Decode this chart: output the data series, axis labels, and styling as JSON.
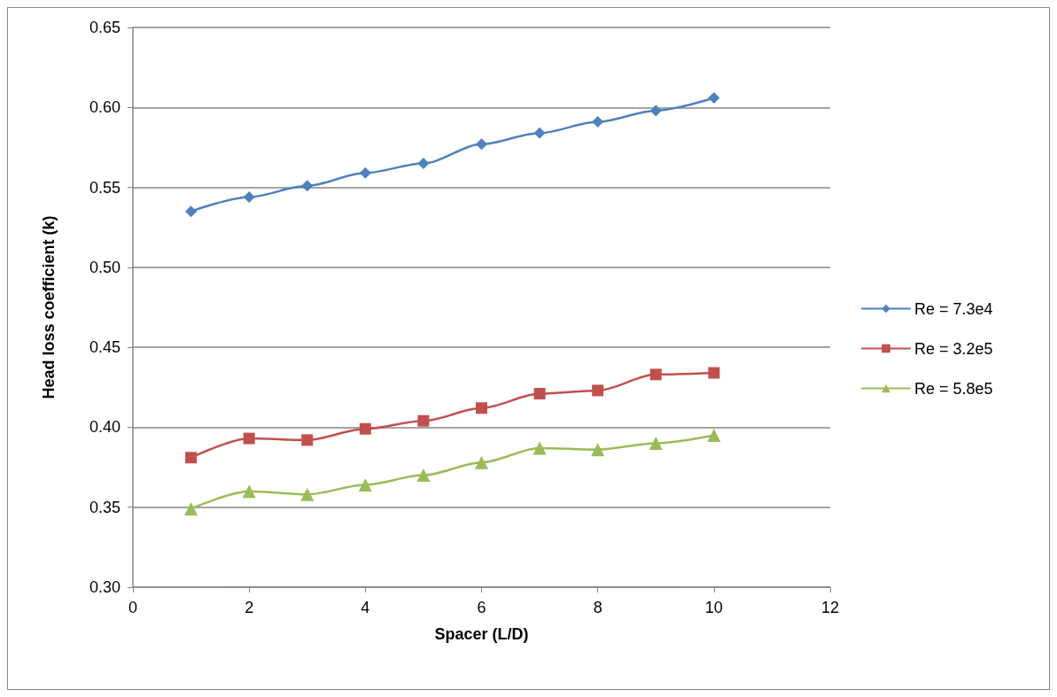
{
  "chart_data": {
    "type": "line",
    "xlabel": "Spacer (L/D)",
    "ylabel": "Head loss coefficient (k)",
    "x": [
      1,
      2,
      3,
      4,
      5,
      6,
      7,
      8,
      9,
      10
    ],
    "series": [
      {
        "name": "Re = 7.3e4",
        "color": "#4f81bd",
        "marker": "diamond",
        "values": [
          0.535,
          0.544,
          0.551,
          0.559,
          0.565,
          0.577,
          0.584,
          0.591,
          0.598,
          0.606
        ]
      },
      {
        "name": "Re = 3.2e5",
        "color": "#c0504d",
        "marker": "square",
        "values": [
          0.381,
          0.393,
          0.392,
          0.399,
          0.404,
          0.412,
          0.421,
          0.423,
          0.433,
          0.434
        ]
      },
      {
        "name": "Re = 5.8e5",
        "color": "#9bbb59",
        "marker": "triangle",
        "values": [
          0.349,
          0.36,
          0.358,
          0.364,
          0.37,
          0.378,
          0.387,
          0.386,
          0.39,
          0.395
        ]
      }
    ],
    "xlim": [
      0,
      12
    ],
    "xticks": [
      0,
      2,
      4,
      6,
      8,
      10,
      12
    ],
    "ylim": [
      0.3,
      0.65
    ],
    "yticks": [
      {
        "value": 0.3,
        "label": "0.30"
      },
      0.35,
      {
        "value": 0.4,
        "label": "0.40"
      },
      0.45,
      {
        "value": 0.5,
        "label": "0.50"
      },
      0.55,
      {
        "value": 0.6,
        "label": "0.60"
      },
      0.65
    ],
    "grid": "y",
    "legend": "right",
    "line_style": "solid"
  }
}
